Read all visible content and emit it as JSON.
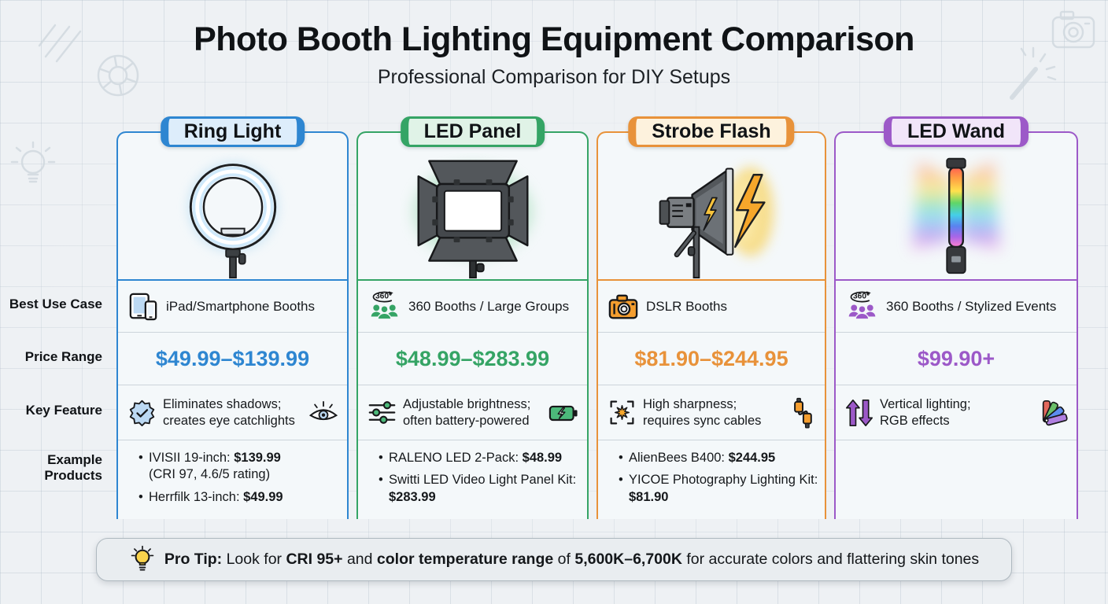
{
  "header": {
    "title": "Photo Booth Lighting Equipment Comparison",
    "subtitle": "Professional Comparison for DIY Setups"
  },
  "row_labels": {
    "use_case": "Best Use Case",
    "price": "Price Range",
    "feature": "Key Feature",
    "products": "Example Products"
  },
  "columns": [
    {
      "name": "Ring Light",
      "accent": "#2e86d1",
      "badge_bg": "#ddedfb",
      "use_case": "iPad/Smartphone Booths",
      "price": "$49.99–$139.99",
      "feature": [
        "Eliminates shadows;",
        "creates eye catchlights"
      ],
      "products": [
        {
          "label": "IVISII 19-inch:",
          "price": "$139.99",
          "note": "(CRI 97, 4.6/5 rating)"
        },
        {
          "label": "Herrfilk 13-inch:",
          "price": "$49.99"
        }
      ]
    },
    {
      "name": "LED Panel",
      "accent": "#35a465",
      "badge_bg": "#e0f3e7",
      "use_case": "360 Booths / Large Groups",
      "price": "$48.99–$283.99",
      "feature": [
        "Adjustable brightness;",
        "often battery-powered"
      ],
      "products": [
        {
          "label": "RALENO LED 2-Pack:",
          "price": "$48.99"
        },
        {
          "label": "Switti LED Video Light Panel Kit:",
          "price": "$283.99"
        }
      ]
    },
    {
      "name": "Strobe Flash",
      "accent": "#e8923a",
      "badge_bg": "#fdf2dd",
      "use_case": "DSLR Booths",
      "price": "$81.90–$244.95",
      "feature": [
        "High sharpness;",
        "requires sync cables"
      ],
      "products": [
        {
          "label": "AlienBees B400:",
          "price": "$244.95"
        },
        {
          "label": "YICOE Photography Lighting Kit:",
          "price": "$81.90"
        }
      ]
    },
    {
      "name": "LED Wand",
      "accent": "#9c59c8",
      "badge_bg": "#f1e5f9",
      "use_case": "360 Booths / Stylized Events",
      "price": "$99.90+",
      "feature": [
        "Vertical lighting;",
        "RGB effects"
      ],
      "products": []
    }
  ],
  "pro_tip": {
    "segments": [
      {
        "text": "Pro Tip:",
        "bold": true
      },
      {
        "text": " Look for ",
        "bold": false
      },
      {
        "text": "CRI 95+",
        "bold": true
      },
      {
        "text": " and ",
        "bold": false
      },
      {
        "text": "color temperature range",
        "bold": true
      },
      {
        "text": " of ",
        "bold": false
      },
      {
        "text": "5,600K–6,700K",
        "bold": true
      },
      {
        "text": " for accurate colors and flattering skin tones",
        "bold": false
      }
    ]
  },
  "icons": {
    "columns": [
      {
        "use_case": "tablet-smartphone-icon",
        "feature_left": "badge-check-icon",
        "feature_right": "eye-icon"
      },
      {
        "use_case": "group-360-icon",
        "feature_left": "sliders-icon",
        "feature_right": "battery-charge-icon"
      },
      {
        "use_case": "dslr-camera-icon",
        "feature_left": "sharpness-focus-icon",
        "feature_right": "sync-cables-icon"
      },
      {
        "use_case": "group-360-icon",
        "feature_left": "up-down-arrows-icon",
        "feature_right": "color-swatches-icon"
      }
    ],
    "pro_tip": "lightbulb-icon",
    "decorative": [
      "hatch-lines",
      "aperture-icon",
      "lightbulb-outline-icon",
      "camera-outline-icon",
      "magic-wand-icon"
    ]
  },
  "illustrations": [
    "ring-light",
    "led-panel",
    "strobe-flash",
    "led-wand"
  ]
}
